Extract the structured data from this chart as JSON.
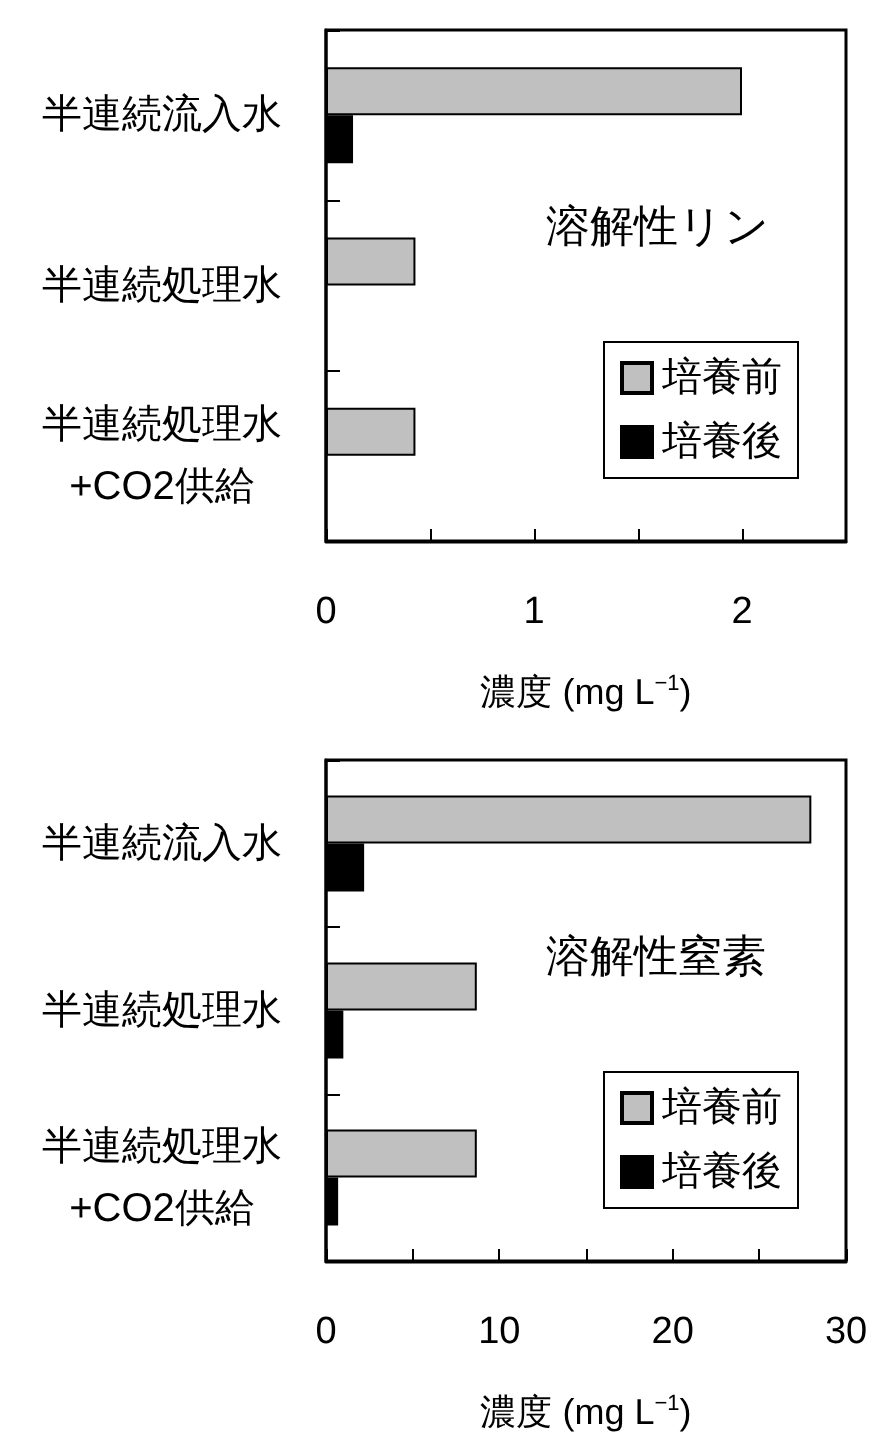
{
  "chart_data": [
    {
      "type": "bar",
      "orientation": "horizontal",
      "title": "溶解性リン",
      "categories": [
        "半連続流入水",
        "半連続処理水",
        "半連続処理水\n+CO2供給"
      ],
      "series": [
        {
          "name": "培養前",
          "color": "#c0c0c0",
          "values": [
            2.0,
            0.43,
            0.43
          ]
        },
        {
          "name": "培養後",
          "color": "#000000",
          "values": [
            0.13,
            null,
            null
          ]
        }
      ],
      "xlabel": "濃度 (mg L$^{−1}$)",
      "xlim": [
        0,
        2.5
      ],
      "xticks": [
        0,
        {
          "value": 0.5,
          "label": null
        },
        1,
        {
          "value": 1.5,
          "label": null
        },
        2
      ],
      "legend": "bottom right"
    },
    {
      "type": "bar",
      "orientation": "horizontal",
      "title": "溶解性窒素",
      "categories": [
        "半連続流入水",
        "半連続処理水",
        "半連続処理水\n+CO2供給"
      ],
      "series": [
        {
          "name": "培養前",
          "color": "#c0c0c0",
          "values": [
            28.0,
            8.7,
            8.7
          ]
        },
        {
          "name": "培養後",
          "color": "#000000",
          "values": [
            2.2,
            1.0,
            0.7
          ]
        }
      ],
      "xlabel": "濃度 (mg L$^{−1}$)",
      "xlim": [
        0,
        30
      ],
      "xticks": [
        0,
        {
          "value": 5,
          "label": null
        },
        10,
        {
          "value": 15,
          "label": null
        },
        20,
        {
          "value": 25,
          "label": null
        },
        30
      ],
      "legend": "bottom right"
    }
  ]
}
